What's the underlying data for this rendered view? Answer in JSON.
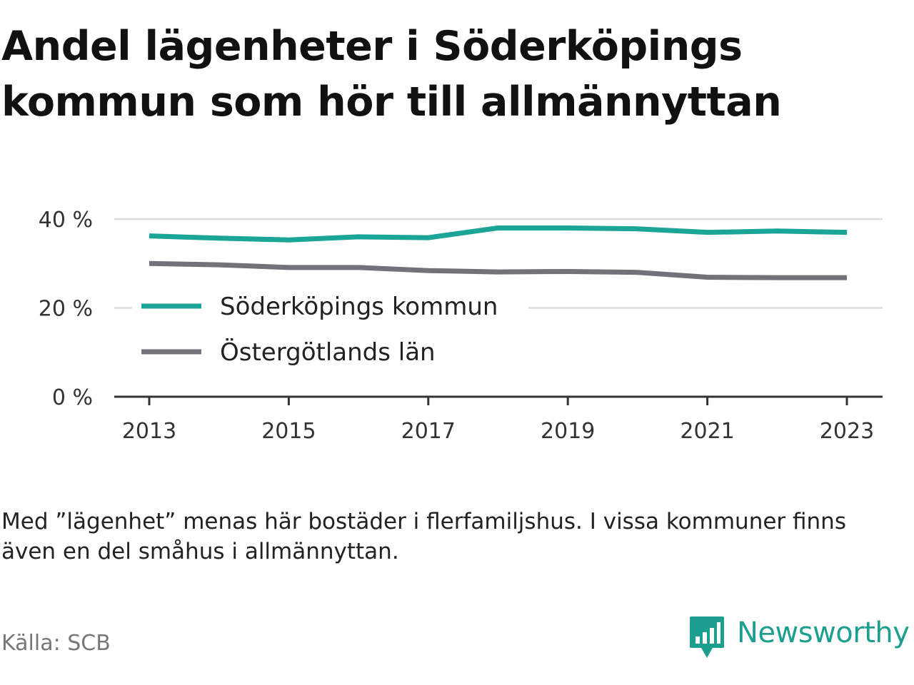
{
  "title_lines": [
    "Andel lägenheter i Söderköpings",
    "kommun som hör till allmännyttan"
  ],
  "note_lines": [
    "Med ”lägenhet” menas här bostäder i flerfamiljshus. I vissa kommuner finns",
    "även en del småhus i allmännyttan."
  ],
  "source": "Källa: SCB",
  "brand": {
    "name": "Newsworthy",
    "color": "#1d9f90"
  },
  "chart_data": {
    "type": "line",
    "x": [
      2013,
      2014,
      2015,
      2016,
      2017,
      2018,
      2019,
      2020,
      2021,
      2022,
      2023
    ],
    "x_ticks": [
      "2013",
      "2015",
      "2017",
      "2019",
      "2021",
      "2023"
    ],
    "y_ticks": [
      "0 %",
      "20 %",
      "40 %"
    ],
    "y_tick_values": [
      0,
      20,
      40
    ],
    "ylim": [
      0,
      40
    ],
    "grid": true,
    "legend_position": "inside-middle-left",
    "series": [
      {
        "name": "Söderköpings kommun",
        "color": "#1ba597",
        "values": [
          36.2,
          35.7,
          35.3,
          36.0,
          35.8,
          38.0,
          38.0,
          37.8,
          37.0,
          37.3,
          37.0
        ]
      },
      {
        "name": "Östergötlands län",
        "color": "#737278",
        "values": [
          30.0,
          29.7,
          29.1,
          29.1,
          28.4,
          28.1,
          28.2,
          28.0,
          26.9,
          26.8,
          26.8
        ]
      }
    ]
  }
}
